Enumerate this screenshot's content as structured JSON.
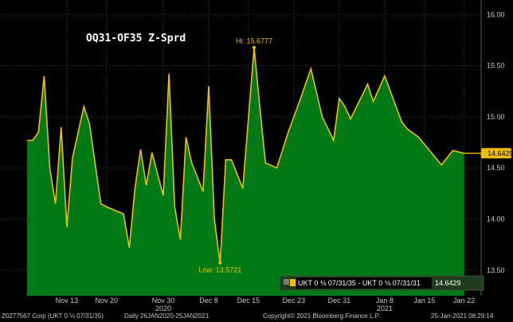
{
  "colors": {
    "background": "#000000",
    "plot_background": "#000000",
    "fill": "#007a14",
    "line": "#f0c000",
    "last_box": "#f0c000",
    "grid": "#3a3a3a"
  },
  "chart_data": {
    "type": "area",
    "title": "OQ31-OF35 Z-Sprd",
    "y_axis_position": "right",
    "ylim": [
      13.25,
      16.08
    ],
    "yticks": [
      "13.50",
      "14.00",
      "14.50",
      "15.00",
      "15.50",
      "16.00"
    ],
    "ytick_values": [
      13.5,
      14.0,
      14.5,
      15.0,
      15.5,
      16.0
    ],
    "x_start": "2020-11-06",
    "x_end": "2021-01-25",
    "xticks": [
      {
        "label": "Nov 13",
        "date": "2020-11-13"
      },
      {
        "label": "Nov 20",
        "date": "2020-11-20"
      },
      {
        "label": "Nov 30",
        "date": "2020-11-30"
      },
      {
        "label": "Dec 8",
        "date": "2020-12-08"
      },
      {
        "label": "Dec 15",
        "date": "2020-12-15"
      },
      {
        "label": "Dec 23",
        "date": "2020-12-23"
      },
      {
        "label": "Dec 31",
        "date": "2020-12-31"
      },
      {
        "label": "Jan 8",
        "date": "2021-01-08"
      },
      {
        "label": "Jan 15",
        "date": "2021-01-15"
      },
      {
        "label": "Jan 22",
        "date": "2021-01-22"
      }
    ],
    "year_labels": [
      {
        "label": "2020",
        "date": "2020-11-30"
      },
      {
        "label": "2021",
        "date": "2021-01-08"
      }
    ],
    "grid": true,
    "series": [
      {
        "name": "UKT 0 ⅛ 07/31/35 - UKT 0 ⅛ 07/31/31",
        "points": [
          {
            "x": "2020-11-06",
            "y": 14.77
          },
          {
            "x": "2020-11-07",
            "y": 14.77
          },
          {
            "x": "2020-11-08",
            "y": 14.85
          },
          {
            "x": "2020-11-09",
            "y": 15.4
          },
          {
            "x": "2020-11-10",
            "y": 14.5
          },
          {
            "x": "2020-11-11",
            "y": 14.15
          },
          {
            "x": "2020-11-12",
            "y": 14.9
          },
          {
            "x": "2020-11-13",
            "y": 13.92
          },
          {
            "x": "2020-11-14",
            "y": 14.6
          },
          {
            "x": "2020-11-16",
            "y": 15.1
          },
          {
            "x": "2020-11-17",
            "y": 14.93
          },
          {
            "x": "2020-11-19",
            "y": 14.15
          },
          {
            "x": "2020-11-20",
            "y": 14.12
          },
          {
            "x": "2020-11-23",
            "y": 14.05
          },
          {
            "x": "2020-11-24",
            "y": 13.72
          },
          {
            "x": "2020-11-25",
            "y": 14.3
          },
          {
            "x": "2020-11-26",
            "y": 14.68
          },
          {
            "x": "2020-11-27",
            "y": 14.33
          },
          {
            "x": "2020-11-28",
            "y": 14.65
          },
          {
            "x": "2020-11-30",
            "y": 14.23
          },
          {
            "x": "2020-12-01",
            "y": 15.42
          },
          {
            "x": "2020-12-02",
            "y": 14.12
          },
          {
            "x": "2020-12-03",
            "y": 13.8
          },
          {
            "x": "2020-12-04",
            "y": 14.8
          },
          {
            "x": "2020-12-05",
            "y": 14.55
          },
          {
            "x": "2020-12-07",
            "y": 14.27
          },
          {
            "x": "2020-12-08",
            "y": 15.3
          },
          {
            "x": "2020-12-09",
            "y": 14.0
          },
          {
            "x": "2020-12-10",
            "y": 13.5721
          },
          {
            "x": "2020-12-11",
            "y": 14.58
          },
          {
            "x": "2020-12-12",
            "y": 14.58
          },
          {
            "x": "2020-12-14",
            "y": 14.3
          },
          {
            "x": "2020-12-16",
            "y": 15.6777
          },
          {
            "x": "2020-12-17",
            "y": 15.1
          },
          {
            "x": "2020-12-18",
            "y": 14.55
          },
          {
            "x": "2020-12-20",
            "y": 14.5
          },
          {
            "x": "2020-12-22",
            "y": 14.85
          },
          {
            "x": "2020-12-24",
            "y": 15.15
          },
          {
            "x": "2020-12-26",
            "y": 15.47
          },
          {
            "x": "2020-12-28",
            "y": 15.0
          },
          {
            "x": "2020-12-30",
            "y": 14.77
          },
          {
            "x": "2020-12-31",
            "y": 15.18
          },
          {
            "x": "2021-01-01",
            "y": 15.1
          },
          {
            "x": "2021-01-02",
            "y": 14.98
          },
          {
            "x": "2021-01-05",
            "y": 15.32
          },
          {
            "x": "2021-01-06",
            "y": 15.15
          },
          {
            "x": "2021-01-08",
            "y": 15.4
          },
          {
            "x": "2021-01-11",
            "y": 14.95
          },
          {
            "x": "2021-01-12",
            "y": 14.88
          },
          {
            "x": "2021-01-14",
            "y": 14.8
          },
          {
            "x": "2021-01-18",
            "y": 14.53
          },
          {
            "x": "2021-01-20",
            "y": 14.67
          },
          {
            "x": "2021-01-22",
            "y": 14.6429
          }
        ]
      }
    ],
    "annotations": {
      "hi": {
        "label": "Hi: 15.6777",
        "x": "2020-12-16",
        "y": 15.6777
      },
      "low": {
        "label": "Low: 13.5721",
        "x": "2020-12-10",
        "y": 13.5721
      }
    },
    "last_value": "14.6429",
    "legend": {
      "text": "UKT 0 ⅛ 07/31/35 - UKT 0 ⅛ 07/31/31",
      "value": "14.6429",
      "position": "bottom-right"
    }
  },
  "footer": {
    "security": "Z0277567 Corp (UKT 0 ⅛ 07/31/35)",
    "range": "Daily 26JAN2020-25JAN2021",
    "copyright": "Copyright© 2021 Bloomberg Finance L.P.",
    "timestamp": "25-Jan-2021 08:29:14"
  }
}
